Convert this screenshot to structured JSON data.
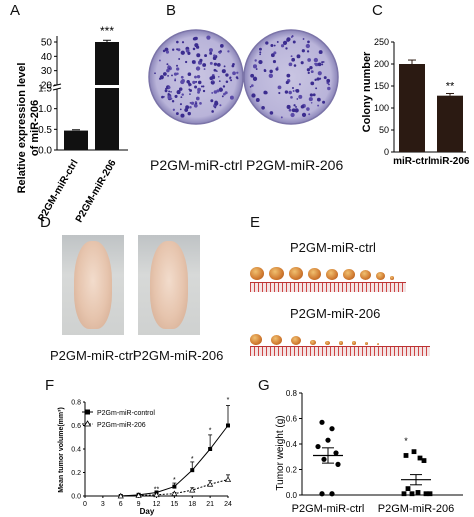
{
  "panels": {
    "A": "A",
    "B": "B",
    "C": "C",
    "D": "D",
    "E": "E",
    "F": "F",
    "G": "G"
  },
  "panel_A": {
    "ylabel_line1": "Relative expression level",
    "ylabel_line2": "of miR-206",
    "categories": [
      "P2GM-miR-ctrl",
      "P2GM-miR-206"
    ],
    "significance": "***",
    "upper_ticks": [
      "50",
      "40",
      "30",
      "20"
    ],
    "lower_ticks": [
      "1.0",
      "0.5",
      "0.0"
    ],
    "break_label": "1.5"
  },
  "panel_B": {
    "labels": [
      "P2GM-miR-ctrl",
      "P2GM-miR-206"
    ]
  },
  "panel_C": {
    "ylabel": "Colony number",
    "categories": [
      "miR-ctrl",
      "miR-206"
    ],
    "significance": "**",
    "ticks": [
      "0",
      "50",
      "100",
      "150",
      "200",
      "250"
    ]
  },
  "panel_D": {
    "labels": [
      "P2GM-miR-ctrl",
      "P2GM-miR-206"
    ]
  },
  "panel_E": {
    "labels": [
      "P2GM-miR-ctrl",
      "P2GM-miR-206"
    ]
  },
  "panel_F": {
    "ylabel": "Mean tumor volume(mm³)",
    "xlabel": "Day",
    "legend": [
      "P2Gm-miR-control",
      "P2Gm-miR-206"
    ],
    "yticks": [
      "0.0",
      "0.2",
      "0.4",
      "0.6",
      "0.8"
    ],
    "xticks": [
      "0",
      "3",
      "6",
      "9",
      "12",
      "15",
      "18",
      "21",
      "24"
    ]
  },
  "panel_G": {
    "ylabel": "Tumor weight (g)",
    "categories": [
      "P2GM-miR-ctrl",
      "P2GM-miR-206"
    ],
    "significance": "*",
    "yticks": [
      "0.0",
      "0.2",
      "0.4",
      "0.6",
      "0.8"
    ]
  },
  "chart_data": [
    {
      "panel": "A",
      "type": "bar",
      "ylabel": "Relative expression level of miR-206",
      "categories": [
        "P2GM-miR-ctrl",
        "P2GM-miR-206"
      ],
      "values": [
        0.47,
        50
      ],
      "errors": [
        0.02,
        1.2
      ],
      "axis_break": true,
      "annotations": [
        "***"
      ]
    },
    {
      "panel": "C",
      "type": "bar",
      "ylabel": "Colony number",
      "categories": [
        "miR-ctrl",
        "miR-206"
      ],
      "values": [
        200,
        128
      ],
      "errors": [
        9,
        5
      ],
      "ylim": [
        0,
        250
      ],
      "annotations": [
        "**"
      ]
    },
    {
      "panel": "F",
      "type": "line",
      "xlabel": "Day",
      "ylabel": "Mean tumor volume(mm³)",
      "x": [
        6,
        9,
        12,
        15,
        18,
        21,
        24
      ],
      "series": [
        {
          "name": "P2Gm-miR-control",
          "values": [
            0.0,
            0.01,
            0.03,
            0.08,
            0.22,
            0.4,
            0.6
          ],
          "errors": [
            0,
            0.005,
            0.01,
            0.03,
            0.07,
            0.12,
            0.17
          ]
        },
        {
          "name": "P2Gm-miR-206",
          "values": [
            0.0,
            0.005,
            0.01,
            0.02,
            0.05,
            0.1,
            0.14
          ],
          "errors": [
            0,
            0.003,
            0.005,
            0.01,
            0.02,
            0.03,
            0.04
          ]
        }
      ],
      "xlim": [
        0,
        24
      ],
      "ylim": [
        0,
        0.8
      ],
      "annotations": [
        "**",
        "*",
        "*",
        "*",
        "*"
      ]
    },
    {
      "panel": "G",
      "type": "scatter",
      "ylabel": "Tumor weight (g)",
      "categories": [
        "P2GM-miR-ctrl",
        "P2GM-miR-206"
      ],
      "series": [
        {
          "name": "P2GM-miR-ctrl",
          "values": [
            0.57,
            0.52,
            0.43,
            0.38,
            0.33,
            0.28,
            0.24,
            0.01,
            0.01
          ],
          "mean": 0.31,
          "sem": 0.06
        },
        {
          "name": "P2GM-miR-206",
          "values": [
            0.34,
            0.31,
            0.29,
            0.27,
            0.05,
            0.02,
            0.01,
            0.01,
            0.01,
            0.01
          ],
          "mean": 0.12,
          "sem": 0.04
        }
      ],
      "ylim": [
        0,
        0.8
      ],
      "annotations": [
        "*"
      ]
    }
  ]
}
